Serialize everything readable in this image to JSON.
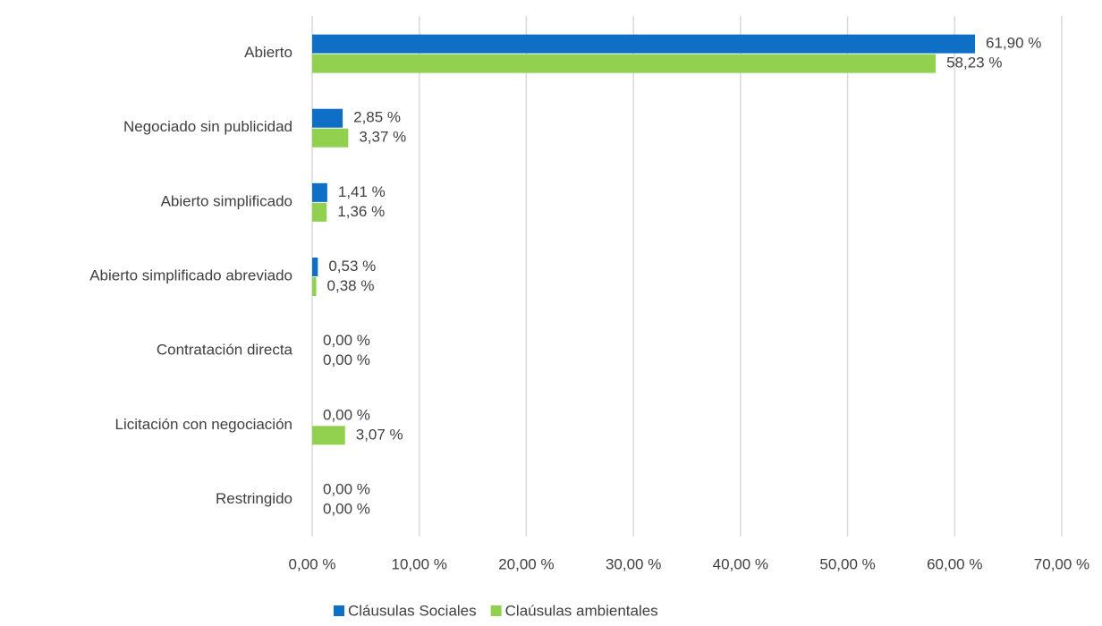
{
  "chart_data": {
    "type": "hbar",
    "categories": [
      "Abierto",
      "Negociado sin publicidad",
      "Abierto simplificado",
      "Abierto simplificado abreviado",
      "Contratación directa",
      "Licitación con negociación",
      "Restringido"
    ],
    "series": [
      {
        "name": "Cláusulas Sociales",
        "color": "#0f6fc6",
        "values": [
          61.9,
          2.85,
          1.41,
          0.53,
          0,
          0,
          0
        ],
        "value_labels": [
          "61,90 %",
          "2,85 %",
          "1,41 %",
          "0,53 %",
          "0,00 %",
          "0,00 %",
          "0,00 %"
        ]
      },
      {
        "name": "Claúsulas ambientales",
        "color": "#92d050",
        "values": [
          58.23,
          3.37,
          1.36,
          0.38,
          0,
          3.07,
          0
        ],
        "value_labels": [
          "58,23 %",
          "3,37 %",
          "1,36 %",
          "0,38 %",
          "0,00 %",
          "3,07 %",
          "0,00 %"
        ]
      }
    ],
    "xlim": [
      0,
      70
    ],
    "xticks": [
      {
        "value": 0,
        "label": "0,00 %"
      },
      {
        "value": 10,
        "label": "10,00 %"
      },
      {
        "value": 20,
        "label": "20,00 %"
      },
      {
        "value": 30,
        "label": "30,00 %"
      },
      {
        "value": 40,
        "label": "40,00 %"
      },
      {
        "value": 50,
        "label": "50,00 %"
      },
      {
        "value": 60,
        "label": "60,00 %"
      },
      {
        "value": 70,
        "label": "70,00 %"
      }
    ],
    "grid": true,
    "legend": "bottom"
  }
}
